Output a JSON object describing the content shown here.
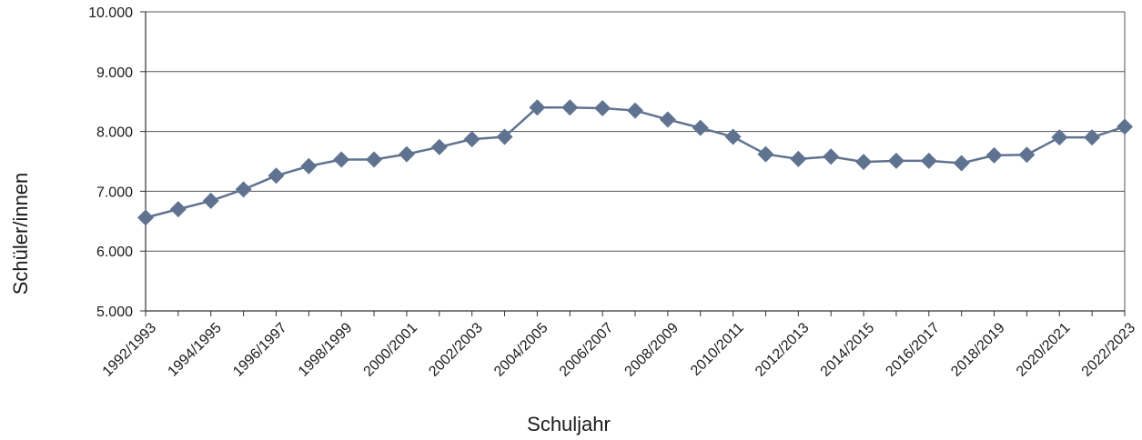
{
  "chart_data": {
    "type": "line",
    "title": "",
    "xlabel": "Schuljahr",
    "ylabel": "Schüler/innen",
    "ylim": [
      5000,
      10000
    ],
    "yticks": [
      5000,
      6000,
      7000,
      8000,
      9000,
      10000
    ],
    "ytick_labels": [
      "5.000",
      "6.000",
      "7.000",
      "8.000",
      "9.000",
      "10.000"
    ],
    "grid": true,
    "legend": "none",
    "categories": [
      "1992/1993",
      "1993/1994",
      "1994/1995",
      "1995/1996",
      "1996/1997",
      "1997/1998",
      "1998/1999",
      "1999/2000",
      "2000/2001",
      "2001/2002",
      "2002/2003",
      "2003/2004",
      "2004/2005",
      "2005/2006",
      "2006/2007",
      "2007/2008",
      "2008/2009",
      "2009/2010",
      "2010/2011",
      "2011/2012",
      "2012/2013",
      "2013/2014",
      "2014/2015",
      "2015/2016",
      "2016/2017",
      "2017/2018",
      "2018/2019",
      "2019/2020",
      "2020/2021",
      "2021/2022",
      "2022/2023"
    ],
    "x_tick_labels_shown": [
      "1992/1993",
      "1994/1995",
      "1996/1997",
      "1998/1999",
      "2000/2001",
      "2002/2003",
      "2004/2005",
      "2006/2007",
      "2008/2009",
      "2010/2011",
      "2012/2013",
      "2014/2015",
      "2016/2017",
      "2018/2019",
      "2020/2021",
      "2022/2023"
    ],
    "series": [
      {
        "values": [
          6560,
          6700,
          6840,
          7030,
          7260,
          7420,
          7530,
          7530,
          7620,
          7740,
          7870,
          7910,
          8400,
          8400,
          8390,
          8350,
          8200,
          8060,
          7910,
          7620,
          7540,
          7580,
          7490,
          7510,
          7510,
          7470,
          7600,
          7610,
          7900,
          7900,
          8080
        ],
        "color": "#5f7391",
        "marker": "diamond"
      }
    ],
    "colors": {
      "line": "#5f7391",
      "grid": "#555555",
      "axis": "#333333"
    }
  }
}
